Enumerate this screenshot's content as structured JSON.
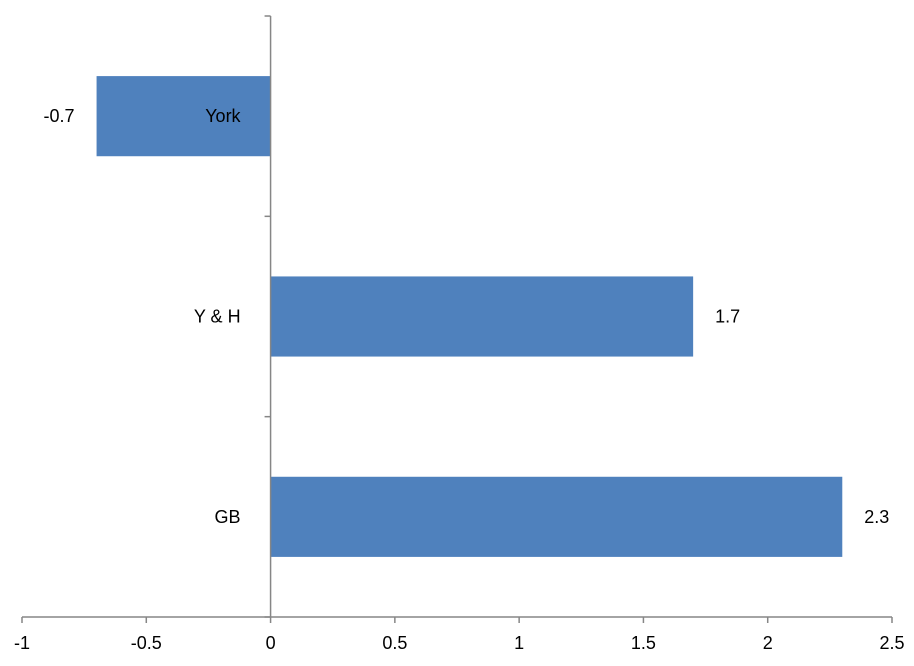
{
  "chart_data": {
    "type": "bar",
    "orientation": "horizontal",
    "categories": [
      "York",
      "Y & H",
      "GB"
    ],
    "values": [
      -0.7,
      1.7,
      2.3
    ],
    "data_labels": [
      "-0.7",
      "1.7",
      "2.3"
    ],
    "title": "",
    "xlabel": "",
    "ylabel": "",
    "xlim": [
      -1,
      2.5
    ],
    "x_ticks": [
      -1,
      -0.5,
      0,
      0.5,
      1,
      1.5,
      2,
      2.5
    ],
    "x_tick_labels": [
      "-1",
      "-0.5",
      "0",
      "0.5",
      "1",
      "1.5",
      "2",
      "2.5"
    ],
    "grid": false,
    "legend": "none",
    "bar_color": "#4F81BD",
    "axis_color": "#868686"
  }
}
